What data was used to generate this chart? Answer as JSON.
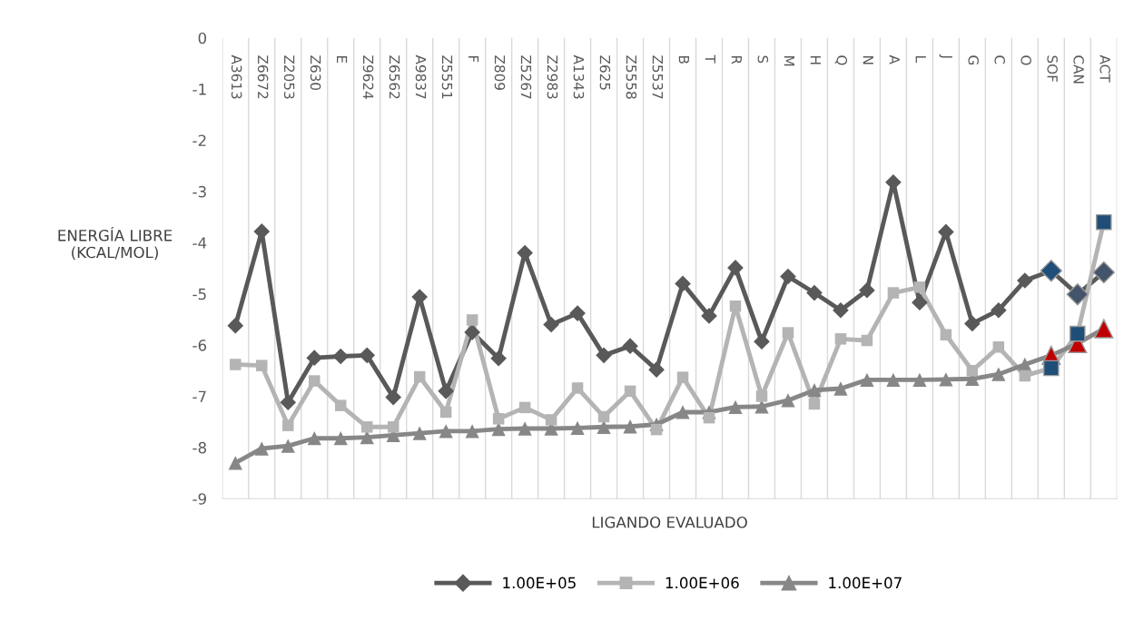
{
  "chart_data": {
    "type": "line",
    "ylabel": "ENERGÍA LIBRE\n(KCAL/MOL)",
    "xlabel": "LIGANDO EVALUADO",
    "categories": [
      "A3613",
      "Z6672",
      "Z2053",
      "Z630",
      "E",
      "Z9624",
      "Z6562",
      "A9837",
      "Z5551",
      "F",
      "Z809",
      "Z5267",
      "Z2983",
      "A1343",
      "Z625",
      "Z5558",
      "Z5537",
      "B",
      "T",
      "R",
      "S",
      "M",
      "H",
      "Q",
      "N",
      "A",
      "L",
      "J",
      "G",
      "C",
      "O",
      "SOF",
      "CAN",
      "ACT"
    ],
    "ylim": [
      -9,
      0
    ],
    "yticks": [
      -9,
      -8,
      -7,
      -6,
      -5,
      -4,
      -3,
      -2,
      -1,
      0
    ],
    "grid": "x",
    "legend": "bottom",
    "series": [
      {
        "name": "1.00E+05",
        "color": "#595959",
        "marker": "diamond",
        "values": [
          -5.62,
          -3.78,
          -7.12,
          -6.25,
          -6.22,
          -6.2,
          -7.02,
          -5.06,
          -6.9,
          -5.75,
          -6.26,
          -4.2,
          -5.6,
          -5.38,
          -6.2,
          -6.02,
          -6.48,
          -4.8,
          -5.43,
          -4.49,
          -5.93,
          -4.66,
          -4.98,
          -5.32,
          -4.93,
          -2.82,
          -5.17,
          -3.79,
          -5.58,
          -5.32,
          -4.74,
          -4.55,
          -5.01,
          -4.58
        ],
        "colors": [
          "#595959",
          "#595959",
          "#595959",
          "#595959",
          "#595959",
          "#595959",
          "#595959",
          "#595959",
          "#595959",
          "#595959",
          "#595959",
          "#595959",
          "#595959",
          "#595959",
          "#595959",
          "#595959",
          "#595959",
          "#595959",
          "#595959",
          "#595959",
          "#595959",
          "#595959",
          "#595959",
          "#595959",
          "#595959",
          "#595959",
          "#595959",
          "#595959",
          "#595959",
          "#595959",
          "#595959",
          "#1f4e79",
          "#44546a",
          "#44546a"
        ]
      },
      {
        "name": "1.00E+06",
        "color": "#b4b4b4",
        "marker": "square",
        "values": [
          -6.38,
          -6.4,
          -7.57,
          -6.7,
          -7.18,
          -7.6,
          -7.6,
          -6.62,
          -7.31,
          -5.51,
          -7.44,
          -7.22,
          -7.46,
          -6.84,
          -7.4,
          -6.9,
          -7.65,
          -6.63,
          -7.42,
          -5.24,
          -7.0,
          -5.76,
          -7.15,
          -5.88,
          -5.91,
          -4.98,
          -4.87,
          -5.8,
          -6.5,
          -6.04,
          -6.6,
          -6.45,
          -5.78,
          -3.6
        ],
        "colors": [
          "#b4b4b4",
          "#b4b4b4",
          "#b4b4b4",
          "#b4b4b4",
          "#b4b4b4",
          "#b4b4b4",
          "#b4b4b4",
          "#b4b4b4",
          "#b4b4b4",
          "#b4b4b4",
          "#b4b4b4",
          "#b4b4b4",
          "#b4b4b4",
          "#b4b4b4",
          "#b4b4b4",
          "#b4b4b4",
          "#b4b4b4",
          "#b4b4b4",
          "#b4b4b4",
          "#b4b4b4",
          "#b4b4b4",
          "#b4b4b4",
          "#b4b4b4",
          "#b4b4b4",
          "#b4b4b4",
          "#b4b4b4",
          "#b4b4b4",
          "#b4b4b4",
          "#b4b4b4",
          "#b4b4b4",
          "#b4b4b4",
          "#1f4e79",
          "#1f4e79",
          "#1f4e79"
        ]
      },
      {
        "name": "1.00E+07",
        "color": "#878787",
        "marker": "triangle",
        "values": [
          -8.3,
          -8.02,
          -7.97,
          -7.82,
          -7.82,
          -7.8,
          -7.76,
          -7.72,
          -7.68,
          -7.68,
          -7.64,
          -7.63,
          -7.63,
          -7.62,
          -7.6,
          -7.59,
          -7.55,
          -7.31,
          -7.31,
          -7.21,
          -7.2,
          -7.08,
          -6.88,
          -6.85,
          -6.68,
          -6.68,
          -6.68,
          -6.67,
          -6.66,
          -6.57,
          -6.38,
          -6.2,
          -5.97,
          -5.68
        ],
        "colors": [
          "#878787",
          "#878787",
          "#878787",
          "#878787",
          "#878787",
          "#878787",
          "#878787",
          "#878787",
          "#878787",
          "#878787",
          "#878787",
          "#878787",
          "#878787",
          "#878787",
          "#878787",
          "#878787",
          "#878787",
          "#878787",
          "#878787",
          "#878787",
          "#878787",
          "#878787",
          "#878787",
          "#878787",
          "#878787",
          "#878787",
          "#878787",
          "#878787",
          "#878787",
          "#878787",
          "#878787",
          "#c00000",
          "#c00000",
          "#c00000"
        ]
      }
    ]
  }
}
